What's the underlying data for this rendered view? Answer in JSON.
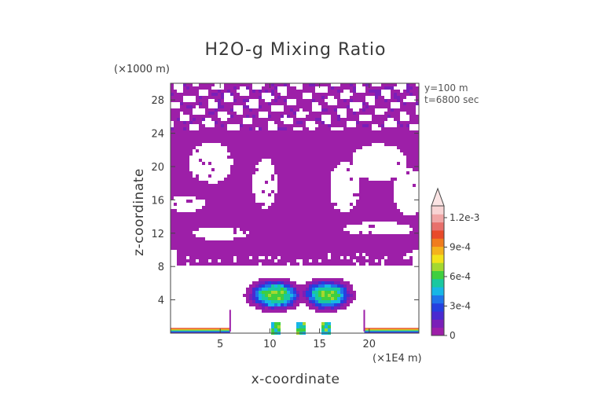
{
  "chart_data": {
    "type": "heatmap",
    "title": "H2O-g Mixing Ratio",
    "xlabel": "x-coordinate",
    "ylabel": "z-coordinate",
    "x_unit": "(×1E4 m)",
    "y_unit": "(×1000 m)",
    "x_ticks": [
      5,
      10,
      15,
      20
    ],
    "y_ticks": [
      4,
      8,
      12,
      16,
      20,
      24,
      28
    ],
    "xlim": [
      0,
      25
    ],
    "ylim": [
      0,
      30
    ],
    "annotations": [
      "y=100 m",
      "t=6800 sec"
    ],
    "colorbar": {
      "tick_labels": [
        "0",
        "3e-4",
        "6e-4",
        "9e-4",
        "1.2e-3"
      ],
      "tick_values": [
        0,
        0.0003,
        0.0006,
        0.0009,
        0.0012
      ],
      "range": [
        0,
        0.00132
      ],
      "colors": [
        "#9d1fa8",
        "#7a1fb8",
        "#4a2ad0",
        "#2440e0",
        "#1f74ea",
        "#17b6e6",
        "#19c8a0",
        "#3fcf3f",
        "#a4d830",
        "#f2e21a",
        "#f4b21c",
        "#f07c1e",
        "#e84a2a",
        "#e8706c",
        "#f0a6a6",
        "#f8d4d4"
      ]
    }
  }
}
